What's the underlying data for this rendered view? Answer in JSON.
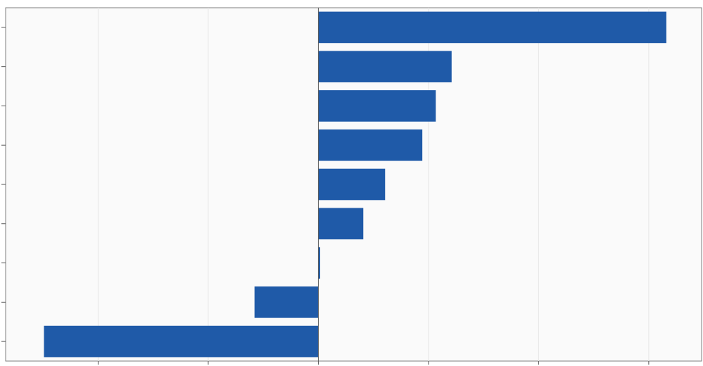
{
  "chart_data": {
    "type": "bar",
    "orientation": "horizontal",
    "categories": [
      "",
      "",
      "",
      "",
      "",
      "",
      "",
      "",
      ""
    ],
    "values": [
      158,
      60.5,
      53.3,
      47.2,
      30.3,
      20.4,
      0.8,
      -29,
      -124.6
    ],
    "xlim": [
      -142,
      174
    ],
    "xticks": [
      -100,
      -50,
      0,
      50,
      100,
      150
    ],
    "title": "",
    "xlabel": "",
    "ylabel": "",
    "grid": true,
    "legend": "none",
    "bar_color": "#1f5aa8",
    "background_color": "#fafafa",
    "grid_color": "#e6e6e6"
  }
}
